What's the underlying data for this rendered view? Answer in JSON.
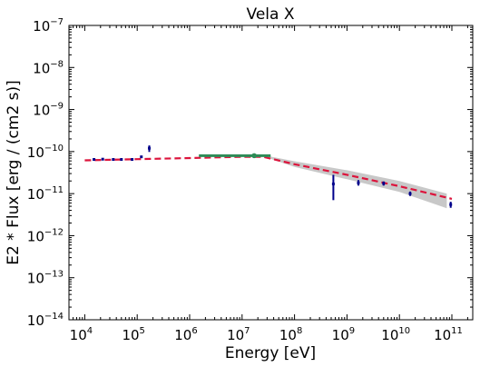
{
  "chart_data": {
    "type": "scatter",
    "title": "Vela X",
    "xlabel": "Energy [eV]",
    "ylabel": "E2 * Flux [erg / (cm2 s)]",
    "xscale": "log",
    "yscale": "log",
    "xlim": [
      5000,
      250000000000
    ],
    "ylim": [
      1e-14,
      1e-07
    ],
    "x_ticks": [
      {
        "base": "10",
        "exp": "4",
        "value": 10000
      },
      {
        "base": "10",
        "exp": "5",
        "value": 100000
      },
      {
        "base": "10",
        "exp": "6",
        "value": 1000000
      },
      {
        "base": "10",
        "exp": "7",
        "value": 10000000
      },
      {
        "base": "10",
        "exp": "8",
        "value": 100000000
      },
      {
        "base": "10",
        "exp": "9",
        "value": 1000000000
      },
      {
        "base": "10",
        "exp": "10",
        "value": 10000000000
      },
      {
        "base": "10",
        "exp": "11",
        "value": 100000000000
      }
    ],
    "y_ticks": [
      {
        "base": "10",
        "exp": "−14",
        "value": 1e-14
      },
      {
        "base": "10",
        "exp": "−13",
        "value": 1e-13
      },
      {
        "base": "10",
        "exp": "−12",
        "value": 1e-12
      },
      {
        "base": "10",
        "exp": "−11",
        "value": 1e-11
      },
      {
        "base": "10",
        "exp": "−10",
        "value": 1e-10
      },
      {
        "base": "10",
        "exp": "−9",
        "value": 1e-09
      },
      {
        "base": "10",
        "exp": "−8",
        "value": 1e-08
      },
      {
        "base": "10",
        "exp": "−7",
        "value": 1e-07
      }
    ],
    "grid": false,
    "series": [
      {
        "kind": "points",
        "color": "#00008b",
        "points": [
          {
            "x": 15000,
            "y": 6.5e-11,
            "ylo": 6.2e-11,
            "yhi": 6.8e-11
          },
          {
            "x": 22000,
            "y": 6.6e-11,
            "ylo": 6.3e-11,
            "yhi": 6.9e-11
          },
          {
            "x": 35000,
            "y": 6.5e-11,
            "ylo": 6.2e-11,
            "yhi": 6.8e-11
          },
          {
            "x": 50000,
            "y": 6.5e-11,
            "ylo": 6.2e-11,
            "yhi": 6.8e-11
          },
          {
            "x": 80000,
            "y": 6.5e-11,
            "ylo": 6.2e-11,
            "yhi": 6.8e-11
          },
          {
            "x": 120000,
            "y": 7.5e-11,
            "ylo": 7.2e-11,
            "yhi": 7.9e-11
          },
          {
            "x": 170000,
            "y": 1.2e-10,
            "ylo": 9.8e-11,
            "yhi": 1.4e-10
          },
          {
            "x": 550000000,
            "y": 1.7e-11,
            "ylo": 7e-12,
            "yhi": 2.8e-11
          },
          {
            "x": 1650000000,
            "y": 1.8e-11,
            "ylo": 1.55e-11,
            "yhi": 2.1e-11
          },
          {
            "x": 5000000000,
            "y": 1.75e-11,
            "ylo": 1.55e-11,
            "yhi": 1.95e-11
          },
          {
            "x": 16000000000,
            "y": 1e-11,
            "ylo": 8.8e-12,
            "yhi": 1.12e-11
          },
          {
            "x": 95000000000,
            "y": 5.5e-12,
            "ylo": 4.6e-12,
            "yhi": 6.4e-12
          }
        ]
      },
      {
        "kind": "model",
        "color": "#dc143c",
        "style": "dashed",
        "points": [
          {
            "x": 10000,
            "y": 6.2e-11
          },
          {
            "x": 100000,
            "y": 6.6e-11
          },
          {
            "x": 1000000,
            "y": 7e-11
          },
          {
            "x": 10000000,
            "y": 7.5e-11
          },
          {
            "x": 25000000,
            "y": 7.5e-11
          },
          {
            "x": 100000000,
            "y": 5e-11
          },
          {
            "x": 1000000000,
            "y": 2.8e-11
          },
          {
            "x": 10000000000,
            "y": 1.5e-11
          },
          {
            "x": 100000000000,
            "y": 7.5e-12
          }
        ]
      },
      {
        "kind": "band",
        "color": "#c8c8c8",
        "points": [
          {
            "x": 30000000,
            "lo": 7.2e-11,
            "hi": 7.9e-11
          },
          {
            "x": 100000000,
            "lo": 4.3e-11,
            "hi": 5.9e-11
          },
          {
            "x": 1000000000,
            "lo": 2.2e-11,
            "hi": 3.6e-11
          },
          {
            "x": 10000000000,
            "lo": 1.1e-11,
            "hi": 2e-11
          },
          {
            "x": 80000000000,
            "lo": 4.5e-12,
            "hi": 1e-11
          }
        ]
      },
      {
        "kind": "segment",
        "color": "#2e8b57",
        "points": [
          {
            "x": 1500000,
            "y": 7.6e-11
          },
          {
            "x": 35000000,
            "y": 7.6e-11
          }
        ],
        "marker": {
          "x": 17000000,
          "y": 7.6e-11
        }
      }
    ]
  }
}
